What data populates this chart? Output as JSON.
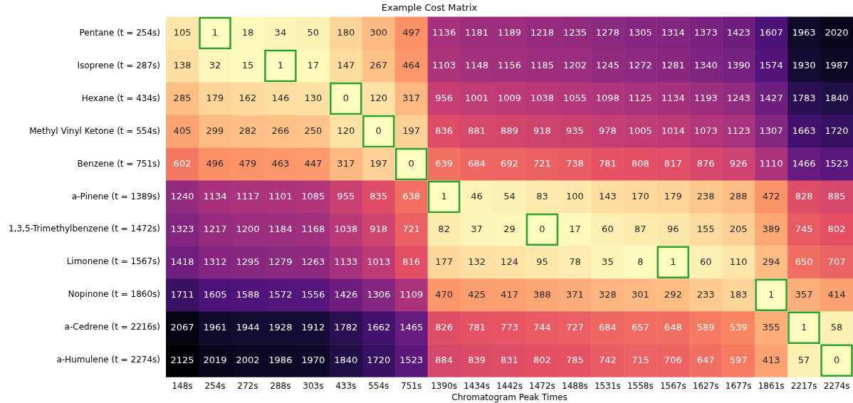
{
  "chart_data": {
    "type": "heatmap",
    "title": "Example Cost Matrix",
    "xlabel": "Chromatogram Peak Times",
    "categories": [
      "148s",
      "254s",
      "272s",
      "288s",
      "303s",
      "433s",
      "554s",
      "751s",
      "1390s",
      "1434s",
      "1442s",
      "1472s",
      "1488s",
      "1531s",
      "1558s",
      "1567s",
      "1627s",
      "1677s",
      "1861s",
      "2217s",
      "2274s"
    ],
    "y_categories": [
      "Pentane (t = 254s)",
      "Isoprene (t = 287s)",
      "Hexane (t = 434s)",
      "Methyl Vinyl Ketone (t = 554s)",
      "Benzene (t = 751s)",
      "a-Pinene (t = 1389s)",
      "1,3,5-Trimethylbenzene (t = 1472s)",
      "Limonene (t = 1567s)",
      "Nopinone (t = 1860s)",
      "a-Cedrene (t = 2216s)",
      "a-Humulene (t = 2274s)"
    ],
    "cells": [
      [
        105,
        1,
        18,
        34,
        50,
        180,
        300,
        497,
        1136,
        1181,
        1189,
        1218,
        1235,
        1278,
        1305,
        1314,
        1373,
        1423,
        1607,
        1963,
        2020
      ],
      [
        138,
        32,
        15,
        1,
        17,
        147,
        267,
        464,
        1103,
        1148,
        1156,
        1185,
        1202,
        1245,
        1272,
        1281,
        1340,
        1390,
        1574,
        1930,
        1987
      ],
      [
        285,
        179,
        162,
        146,
        130,
        0,
        120,
        317,
        956,
        1001,
        1009,
        1038,
        1055,
        1098,
        1125,
        1134,
        1193,
        1243,
        1427,
        1783,
        1840
      ],
      [
        405,
        299,
        282,
        266,
        250,
        120,
        0,
        197,
        836,
        881,
        889,
        918,
        935,
        978,
        1005,
        1014,
        1073,
        1123,
        1307,
        1663,
        1720
      ],
      [
        602,
        496,
        479,
        463,
        447,
        317,
        197,
        0,
        639,
        684,
        692,
        721,
        738,
        781,
        808,
        817,
        876,
        926,
        1110,
        1466,
        1523
      ],
      [
        1240,
        1134,
        1117,
        1101,
        1085,
        955,
        835,
        638,
        1,
        46,
        54,
        83,
        100,
        143,
        170,
        179,
        238,
        288,
        472,
        828,
        885
      ],
      [
        1323,
        1217,
        1200,
        1184,
        1168,
        1038,
        918,
        721,
        82,
        37,
        29,
        0,
        17,
        60,
        87,
        96,
        155,
        205,
        389,
        745,
        802
      ],
      [
        1418,
        1312,
        1295,
        1279,
        1263,
        1133,
        1013,
        816,
        177,
        132,
        124,
        95,
        78,
        35,
        8,
        1,
        60,
        110,
        294,
        650,
        707
      ],
      [
        1711,
        1605,
        1588,
        1572,
        1556,
        1426,
        1306,
        1109,
        470,
        425,
        417,
        388,
        371,
        328,
        301,
        292,
        233,
        183,
        1,
        357,
        414
      ],
      [
        2067,
        1961,
        1944,
        1928,
        1912,
        1782,
        1662,
        1465,
        826,
        781,
        773,
        744,
        727,
        684,
        657,
        648,
        589,
        539,
        355,
        1,
        58
      ],
      [
        2125,
        2019,
        2002,
        1986,
        1970,
        1840,
        1720,
        1523,
        884,
        839,
        831,
        802,
        785,
        742,
        715,
        706,
        647,
        597,
        413,
        57,
        0
      ]
    ],
    "data_labels": true
  }
}
